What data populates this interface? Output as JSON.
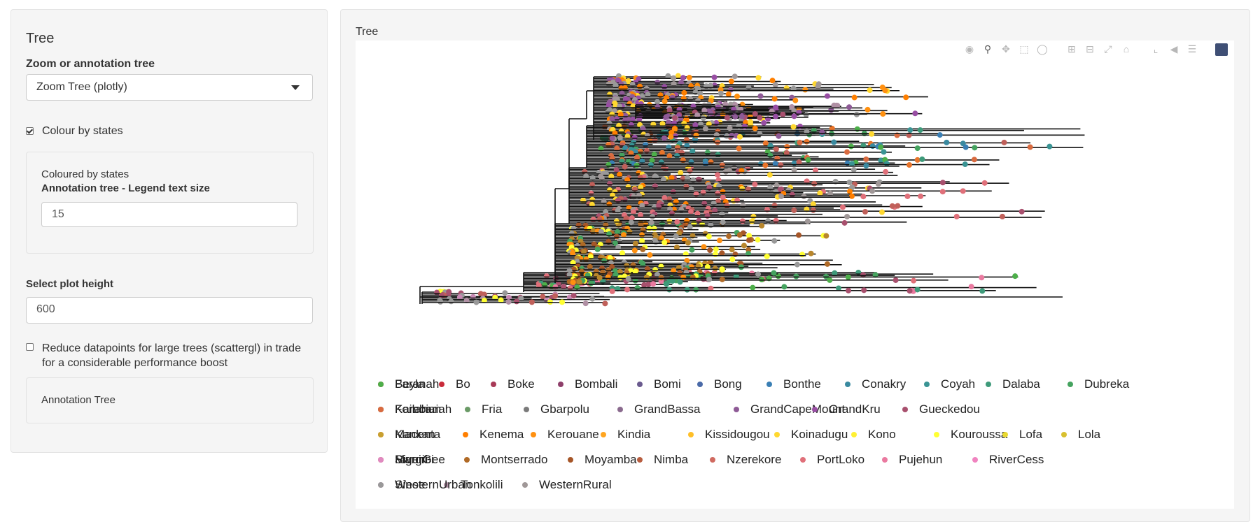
{
  "sidebar": {
    "title": "Tree",
    "annotation_label": "Zoom or annotation tree",
    "annotation_selected": "Zoom Tree (plotly)",
    "colour_by_states_label": "Colour by states",
    "colour_by_states_checked": true,
    "coloured_by_text": "Coloured by states",
    "legend_text_size_label": "Annotation tree - Legend text size",
    "legend_text_size_value": "15",
    "plot_height_label": "Select plot height",
    "plot_height_value": "600",
    "reduce_datapoints_label": "Reduce datapoints for large trees (scattergl) in trade for a considerable performance boost",
    "reduce_datapoints_checked": false,
    "annotation_tree_text": "Annotation Tree"
  },
  "main": {
    "plot_title": "Tree"
  },
  "modebar": {
    "icons": [
      "camera-icon",
      "zoom-icon",
      "pan-icon",
      "box-select-icon",
      "lasso-icon",
      "zoom-in-icon",
      "zoom-out-icon",
      "autoscale-icon",
      "reset-axes-icon",
      "spike-lines-icon",
      "hover-closest-icon",
      "hover-compare-icon",
      "plotly-logo-icon"
    ],
    "active": "zoom-icon"
  },
  "legend": {
    "items": [
      {
        "label": "Beyla",
        "color": "#e41a1c"
      },
      {
        "label": "Bo",
        "color": "#c92b3a"
      },
      {
        "label": "Boke",
        "color": "#a83a57"
      },
      {
        "label": "Bombali",
        "color": "#8e3f6a"
      },
      {
        "label": "Bomi",
        "color": "#6a5a8e"
      },
      {
        "label": "Bong",
        "color": "#4a6aa8"
      },
      {
        "label": "Bonthe",
        "color": "#3a7fb4"
      },
      {
        "label": "Conakry",
        "color": "#3a8aa0"
      },
      {
        "label": "Coyah",
        "color": "#3a9494"
      },
      {
        "label": "Dalaba",
        "color": "#3e9a7a"
      },
      {
        "label": "Dubreka",
        "color": "#45a35f"
      },
      {
        "label": "Faranah",
        "color": "#4daf4a"
      },
      {
        "label": "Forecariah",
        "color": "#5aa54e"
      },
      {
        "label": "Fria",
        "color": "#6a9a66"
      },
      {
        "label": "Gbarpolu",
        "color": "#7a7a7a"
      },
      {
        "label": "GrandBassa",
        "color": "#8a6a8e"
      },
      {
        "label": "GrandCapeMount",
        "color": "#8e5a96"
      },
      {
        "label": "GrandKru",
        "color": "#984ea3"
      },
      {
        "label": "Gueckedou",
        "color": "#a8506e"
      },
      {
        "label": "Kailahun",
        "color": "#c0605a"
      },
      {
        "label": "Kambia",
        "color": "#d96b40"
      },
      {
        "label": "Kankan",
        "color": "#e8742a"
      },
      {
        "label": "Kenema",
        "color": "#ff7f00"
      },
      {
        "label": "Kerouane",
        "color": "#ff9010"
      },
      {
        "label": "Kindia",
        "color": "#ffa520"
      },
      {
        "label": "Kissidougou",
        "color": "#ffbf28"
      },
      {
        "label": "Koinadugu",
        "color": "#ffd830"
      },
      {
        "label": "Kono",
        "color": "#fff033"
      },
      {
        "label": "Kouroussa",
        "color": "#ffff33"
      },
      {
        "label": "Lofa",
        "color": "#e8d830"
      },
      {
        "label": "Lola",
        "color": "#d8c030"
      },
      {
        "label": "Macenta",
        "color": "#c8a030"
      },
      {
        "label": "Margibi",
        "color": "#b8862c"
      },
      {
        "label": "Montserrado",
        "color": "#b06a26"
      },
      {
        "label": "Moyamba",
        "color": "#a65628"
      },
      {
        "label": "Nimba",
        "color": "#b85e40"
      },
      {
        "label": "Nzerekore",
        "color": "#d06a60"
      },
      {
        "label": "PortLoko",
        "color": "#e0707a"
      },
      {
        "label": "Pujehun",
        "color": "#ea7aa0"
      },
      {
        "label": "RiverCess",
        "color": "#f084c0"
      },
      {
        "label": "RiverGee",
        "color": "#f081bf"
      },
      {
        "label": "Siguiri",
        "color": "#e08ac0"
      },
      {
        "label": "Sinoe",
        "color": "#c88ab4"
      },
      {
        "label": "Tonkolili",
        "color": "#b090a4"
      },
      {
        "label": "WesternRural",
        "color": "#a09898"
      },
      {
        "label": "WesternUrban",
        "color": "#999999"
      }
    ]
  }
}
